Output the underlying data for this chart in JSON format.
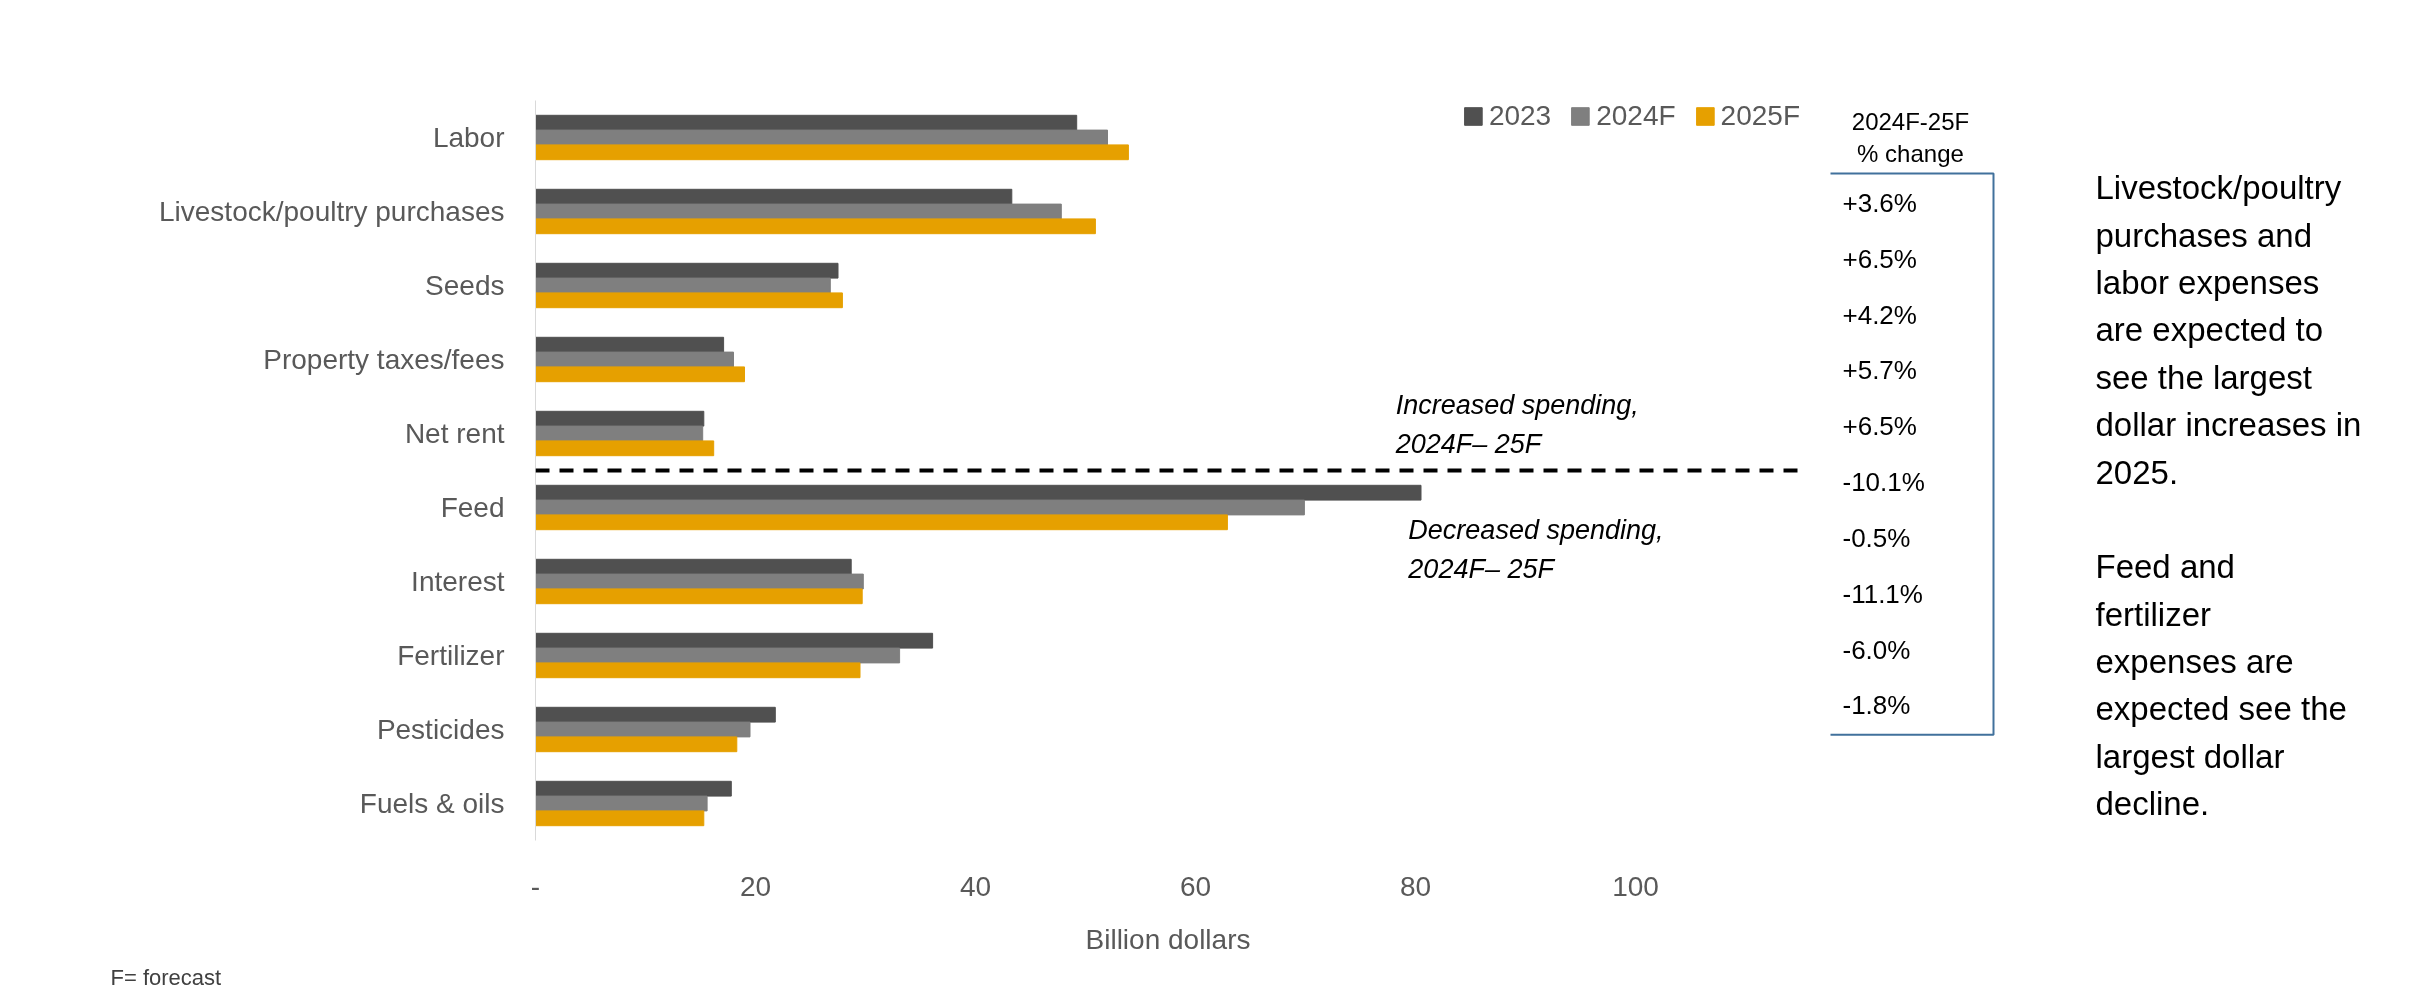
{
  "chart_data": {
    "type": "bar",
    "orientation": "horizontal",
    "categories": [
      "Labor",
      "Livestock/poultry purchases",
      "Seeds",
      "Property taxes/fees",
      "Net rent",
      "Feed",
      "Interest",
      "Fertilizer",
      "Pesticides",
      "Fuels & oils"
    ],
    "series": [
      {
        "name": "2023",
        "color": "#505050",
        "values": [
          49.2,
          43.3,
          27.5,
          17.1,
          15.3,
          80.5,
          28.7,
          36.1,
          21.8,
          17.8
        ]
      },
      {
        "name": "2024F",
        "color": "#7f7f7f",
        "values": [
          52.0,
          47.8,
          26.8,
          18.0,
          15.2,
          69.9,
          29.8,
          33.1,
          19.5,
          15.6
        ]
      },
      {
        "name": "2025F",
        "color": "#e6a000",
        "values": [
          53.9,
          50.9,
          27.9,
          19.0,
          16.2,
          62.9,
          29.7,
          29.5,
          18.3,
          15.3
        ]
      }
    ],
    "xlim": [
      0,
      115
    ],
    "xticks": [
      {
        "value": 0,
        "label": "-"
      },
      20,
      40,
      60,
      80,
      100
    ],
    "xlabel": "Billion dollars",
    "legend": "top right",
    "grid": false,
    "annotations": [
      "Increased spending,\n2024F– 25F",
      "Decreased spending,\n2024F– 25F",
      "2024F-25F\n% change",
      "+3.6%",
      "+6.5%",
      "+4.2%",
      "+5.7%",
      "+6.5%",
      "-10.1%",
      "-0.5%",
      "-11.1%",
      "-6.0%",
      "-1.8%",
      "Livestock/poultry\npurchases and\nlabor expenses\nare expected to\nsee the largest\ndollar increases in\n2025.\n\nFeed and\nfertilizer\nexpenses are\nexpected see the\nlargest dollar\ndecline.",
      "F= forecast"
    ]
  }
}
